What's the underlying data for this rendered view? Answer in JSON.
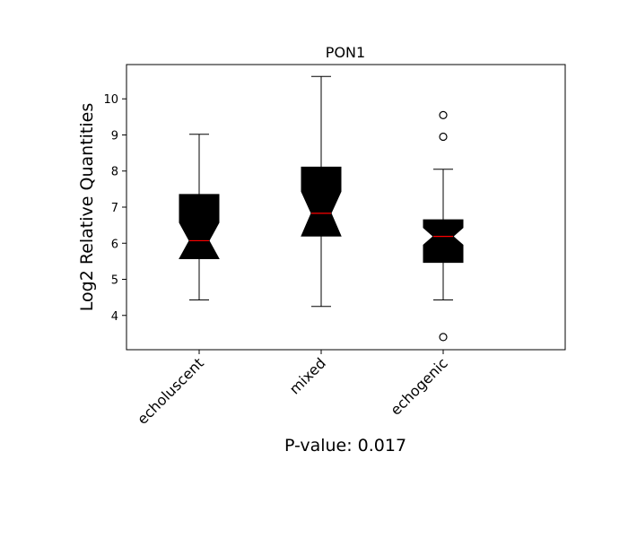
{
  "chart_data": {
    "type": "boxplot",
    "title": "PON1",
    "ylabel": "Log2 Relative Quantities",
    "xlabel": "P-value: 0.017",
    "ylim": [
      3.05,
      10.95
    ],
    "yticks": [
      4,
      5,
      6,
      7,
      8,
      9,
      10
    ],
    "categories": [
      "echoluscent",
      "mixed",
      "echogenic"
    ],
    "notched": true,
    "box_color": "#000000",
    "median_color": "#ff0000",
    "boxes": [
      {
        "name": "echoluscent",
        "whisker_low": 4.43,
        "q1": 5.57,
        "notch_low": 5.57,
        "median": 6.07,
        "notch_high": 6.57,
        "q3": 7.35,
        "whisker_high": 9.02,
        "outliers": []
      },
      {
        "name": "mixed",
        "whisker_low": 4.25,
        "q1": 6.2,
        "notch_low": 6.2,
        "median": 6.83,
        "notch_high": 7.43,
        "q3": 8.11,
        "whisker_high": 10.62,
        "outliers": []
      },
      {
        "name": "echogenic",
        "whisker_low": 4.43,
        "q1": 5.47,
        "notch_low": 5.95,
        "median": 6.19,
        "notch_high": 6.43,
        "q3": 6.65,
        "whisker_high": 8.05,
        "outliers": [
          9.55,
          8.95,
          3.4
        ]
      }
    ]
  }
}
